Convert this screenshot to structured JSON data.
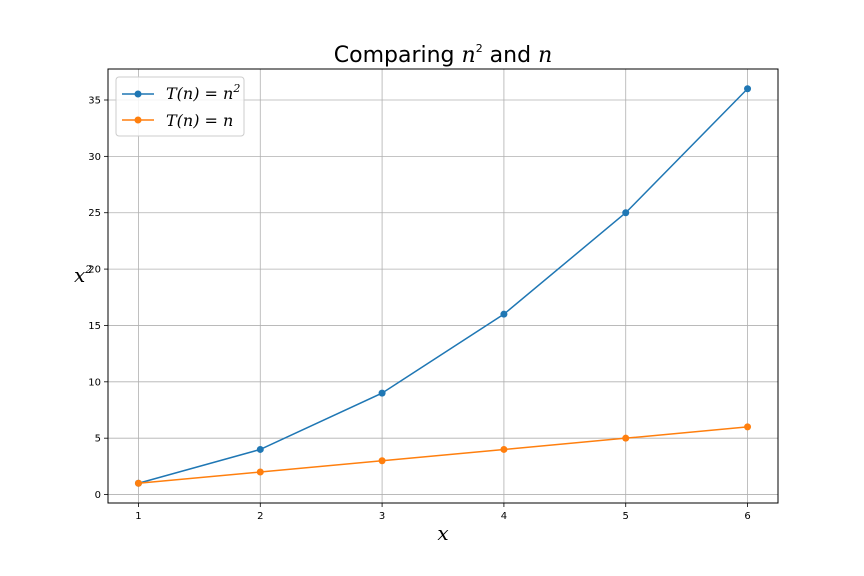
{
  "chart_data": {
    "type": "line",
    "title": {
      "prefix": "Comparing ",
      "n_base": "n",
      "exponent": "2",
      "middle": " and ",
      "n_single": "n"
    },
    "xlabel": "x",
    "ylabel": {
      "base": "x",
      "exponent": "2"
    },
    "x": [
      1,
      2,
      3,
      4,
      5,
      6
    ],
    "xlim": [
      0.75,
      6.25
    ],
    "ylim": [
      -0.75,
      37.75
    ],
    "xticks": [
      1,
      2,
      3,
      4,
      5,
      6
    ],
    "yticks": [
      0,
      5,
      10,
      15,
      20,
      25,
      30,
      35
    ],
    "grid": true,
    "legend_position": "upper-left",
    "series": [
      {
        "name": {
          "lhs": "T(n) = n",
          "exponent": "2"
        },
        "values": [
          1,
          4,
          9,
          16,
          25,
          36
        ],
        "color": "#1f77b4",
        "marker": "circle"
      },
      {
        "name": {
          "lhs": "T(n) = n",
          "exponent": ""
        },
        "values": [
          1,
          2,
          3,
          4,
          5,
          6
        ],
        "color": "#ff7f0e",
        "marker": "circle"
      }
    ]
  }
}
